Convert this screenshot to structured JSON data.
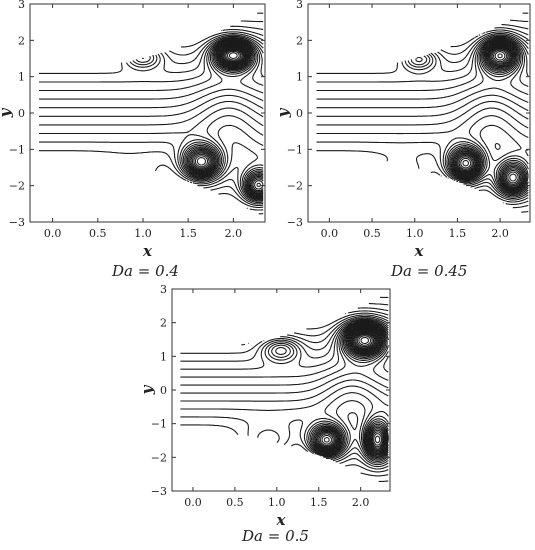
{
  "chart_data": [
    {
      "type": "contour",
      "caption": "Da = 0.4",
      "xlabel": "x",
      "ylabel": "y",
      "xlim": [
        -0.25,
        2.35
      ],
      "ylim": [
        -3,
        3
      ],
      "xticks": [
        0.0,
        0.5,
        1.0,
        1.5,
        2.0
      ],
      "xtick_labels": [
        "0.0",
        "0.5",
        "1.0",
        "1.5",
        "2.0"
      ],
      "yticks": [
        -3,
        -2,
        -1,
        0,
        1,
        2,
        3
      ],
      "ytick_labels": [
        "−3",
        "−2",
        "−1",
        "0",
        "1",
        "2",
        "3"
      ],
      "centers": [
        {
          "x": 1.0,
          "y": 1.55,
          "sign": "closed"
        },
        {
          "x": 2.0,
          "y": 1.6,
          "sign": "closed"
        },
        {
          "x": 1.65,
          "y": -1.35,
          "sign": "closed"
        },
        {
          "x": 2.25,
          "y": -2.0,
          "sign": "closed"
        }
      ]
    },
    {
      "type": "contour",
      "caption": "Da = 0.45",
      "xlabel": "x",
      "ylabel": "y",
      "xlim": [
        -0.25,
        2.35
      ],
      "ylim": [
        -3,
        3
      ],
      "xticks": [
        0.0,
        0.5,
        1.0,
        1.5,
        2.0
      ],
      "xtick_labels": [
        "0.0",
        "0.5",
        "1.0",
        "1.5",
        "2.0"
      ],
      "yticks": [
        -3,
        -2,
        -1,
        0,
        1,
        2,
        3
      ],
      "ytick_labels": [
        "−3",
        "−2",
        "−1",
        "0",
        "1",
        "2",
        "3"
      ],
      "centers": [
        {
          "x": 1.05,
          "y": 1.5,
          "sign": "closed"
        },
        {
          "x": 2.0,
          "y": 1.6,
          "sign": "closed"
        },
        {
          "x": 1.6,
          "y": -1.4,
          "sign": "closed"
        },
        {
          "x": 2.15,
          "y": -1.8,
          "sign": "closed"
        }
      ]
    },
    {
      "type": "contour",
      "caption": "Da = 0.5",
      "xlabel": "x",
      "ylabel": "y",
      "xlim": [
        -0.25,
        2.35
      ],
      "ylim": [
        -3,
        3
      ],
      "xticks": [
        0.0,
        0.5,
        1.0,
        1.5,
        2.0
      ],
      "xtick_labels": [
        "0.0",
        "0.5",
        "1.0",
        "1.5",
        "2.0"
      ],
      "yticks": [
        -3,
        -2,
        -1,
        0,
        1,
        2,
        3
      ],
      "ytick_labels": [
        "−3",
        "−2",
        "−1",
        "0",
        "1",
        "2",
        "3"
      ],
      "centers": [
        {
          "x": 1.05,
          "y": 1.2,
          "sign": "closed"
        },
        {
          "x": 2.05,
          "y": 1.5,
          "sign": "closed"
        },
        {
          "x": 1.6,
          "y": -1.5,
          "sign": "closed"
        },
        {
          "x": 2.2,
          "y": -1.5,
          "sign": "closed"
        }
      ]
    }
  ],
  "colors": {
    "line": "#1a1a1a",
    "frame": "#333333",
    "background": "#ffffff"
  }
}
